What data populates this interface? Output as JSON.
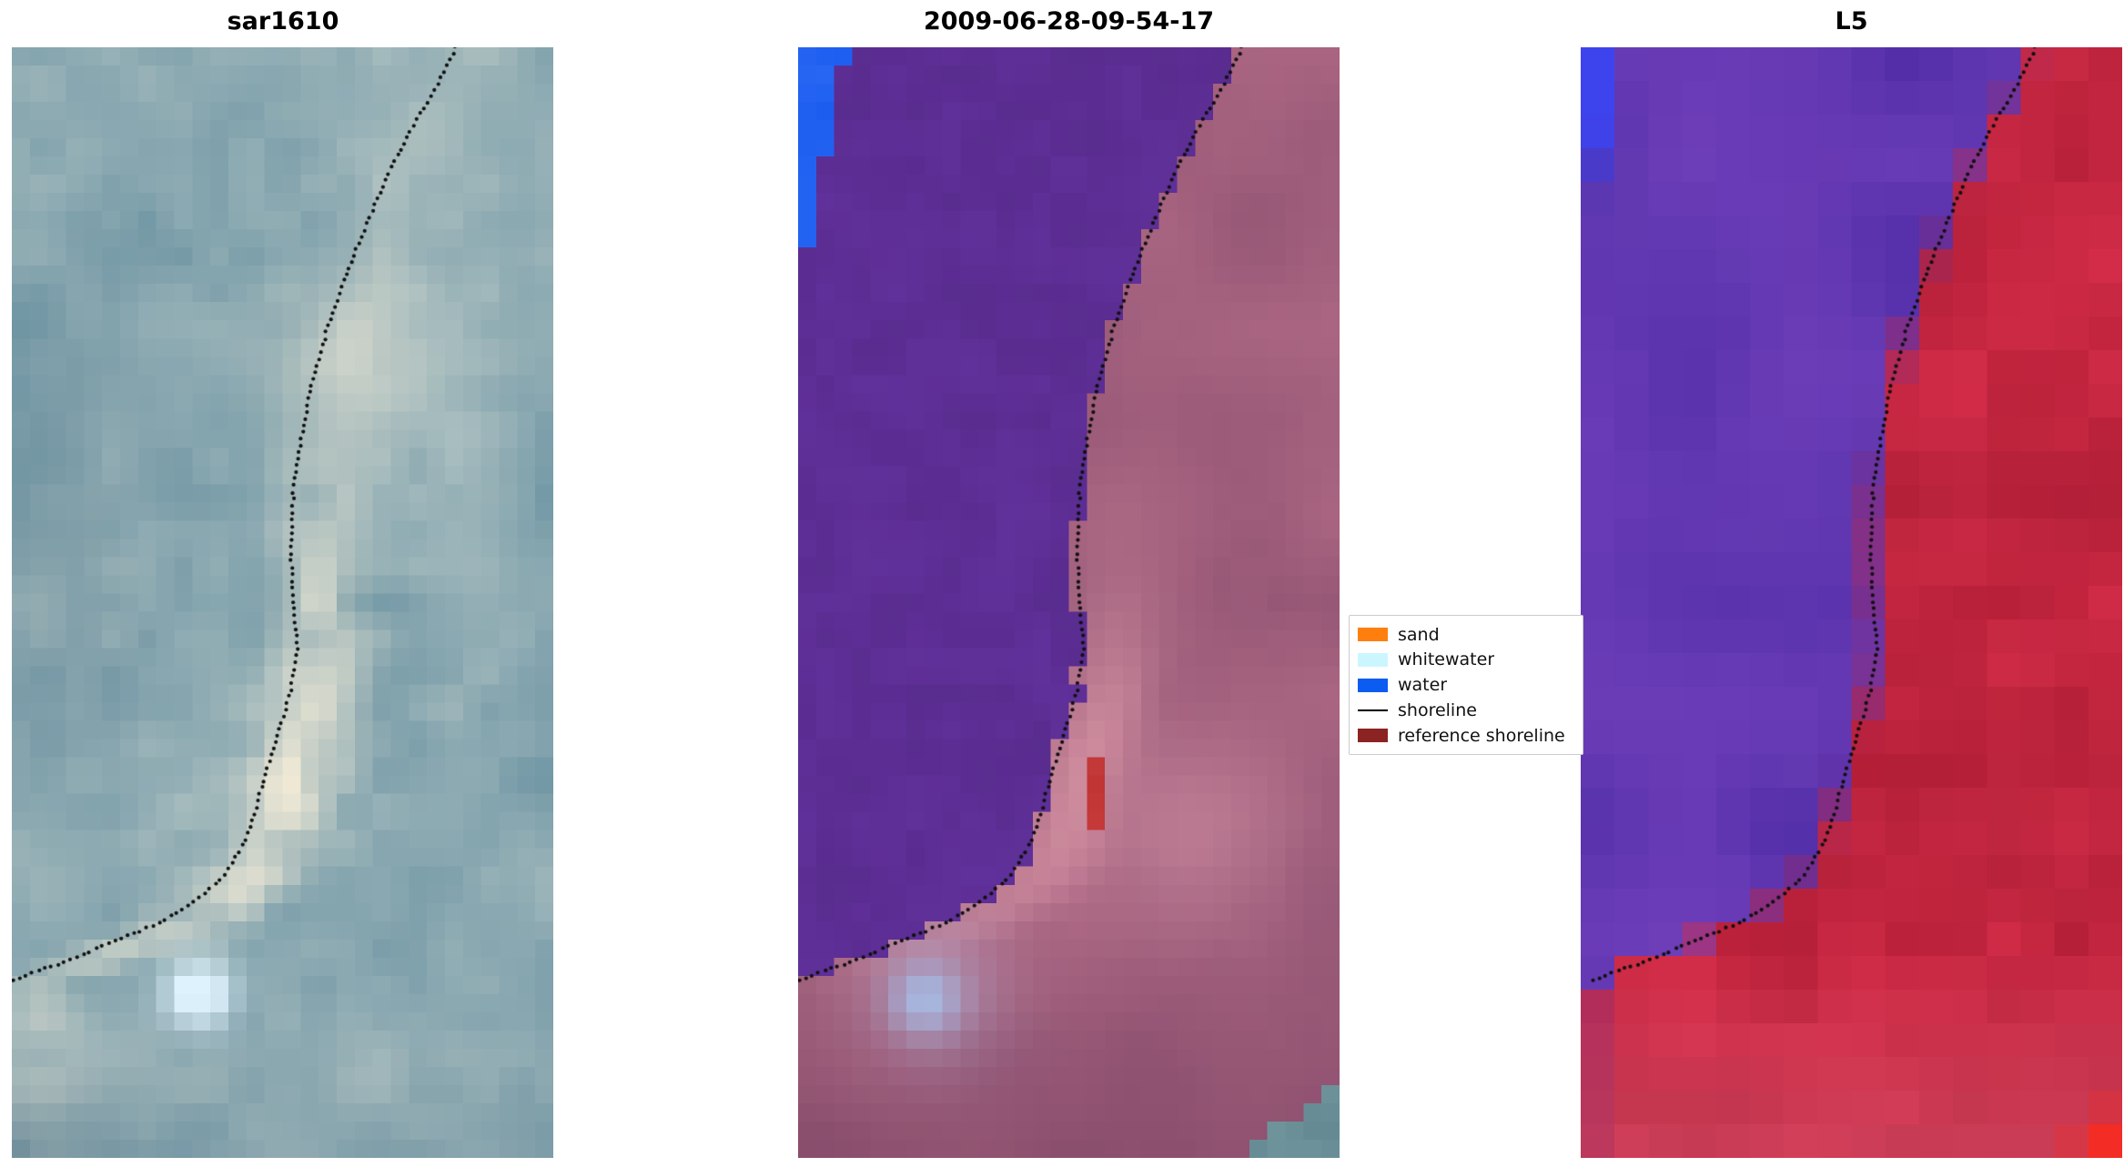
{
  "figure": {
    "background": "#ffffff",
    "panels": [
      {
        "title": "sar1610",
        "kind": "sar-satellite-image",
        "palette": {
          "sea_dark": "#5f8b9d",
          "sea_light": "#b2c4c4",
          "beach": "#efe9d6",
          "bright_spot": "#dff3ff",
          "deep": "#4d7286",
          "flat_bottom": "#8ba0a8"
        }
      },
      {
        "title": "2009-06-28-09-54-17",
        "kind": "classified-satellite-image",
        "palette": {
          "water": "#592c8f",
          "water_light": "#64339f",
          "land_dark": "#8e5272",
          "land_light": "#b06a85",
          "beach_pink": "#d794a4",
          "pink_patch": "#cd8ba0",
          "ocean_blue": "#1a5cf0",
          "ref_red": "#c13535",
          "teal_corner": "#6f949c",
          "blob": "#a7b4dc",
          "maroon": "#7c4463"
        }
      },
      {
        "title": "L5",
        "kind": "landsat5-image",
        "palette": {
          "water_dark": "#4b2aa4",
          "water_light": "#6d3cb8",
          "land_dark": "#b01c34",
          "land_light": "#e23350",
          "bottom_pink": "#d14f68",
          "corner_red": "#ff2a1a",
          "ocean_blue": "#3a46f4"
        }
      }
    ],
    "legend": {
      "items": [
        {
          "label": "sand",
          "swatch": "#ff7f0e",
          "kind": "patch"
        },
        {
          "label": "whitewater",
          "swatch": "#ccf6ff",
          "kind": "patch"
        },
        {
          "label": "water",
          "swatch": "#0c5cf2",
          "kind": "patch"
        },
        {
          "label": "shoreline",
          "swatch": "#000000",
          "kind": "line"
        },
        {
          "label": "reference shoreline",
          "swatch": "#8b2323",
          "kind": "patch"
        }
      ]
    },
    "shoreline_color": "#101010"
  }
}
